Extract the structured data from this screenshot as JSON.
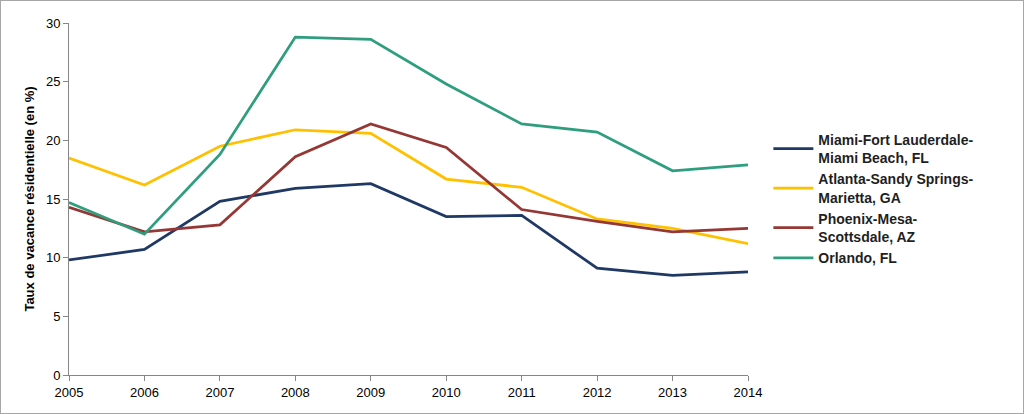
{
  "chart_data": {
    "type": "line",
    "y_label": "Taux de vacance résidentielle (en %)",
    "x": [
      2005,
      2006,
      2007,
      2008,
      2009,
      2010,
      2011,
      2012,
      2013,
      2014
    ],
    "xlim": [
      2005,
      2014
    ],
    "xticks": [
      2005,
      2006,
      2007,
      2008,
      2009,
      2010,
      2011,
      2012,
      2013,
      2014
    ],
    "ylim": [
      0,
      30
    ],
    "yticks": [
      0,
      5,
      10,
      15,
      20,
      25,
      30
    ],
    "grid": false,
    "legend": "right",
    "series": [
      {
        "name": "Miami-Fort Lauderdale-Miami Beach, FL",
        "color": "#1f3864",
        "values": [
          9.8,
          10.7,
          14.8,
          15.9,
          16.3,
          13.5,
          13.6,
          9.1,
          8.5,
          8.8
        ]
      },
      {
        "name": "Atlanta-Sandy Springs-Marietta, GA",
        "color": "#ffc000",
        "values": [
          18.5,
          16.2,
          19.5,
          20.9,
          20.6,
          16.7,
          16.0,
          13.3,
          12.5,
          11.2
        ]
      },
      {
        "name": "Phoenix-Mesa-Scottsdale, AZ",
        "color": "#953735",
        "values": [
          14.3,
          12.2,
          12.8,
          18.6,
          21.4,
          19.4,
          14.1,
          13.1,
          12.2,
          12.5
        ]
      },
      {
        "name": "Orlando, FL",
        "color": "#2e9e7e",
        "values": [
          14.7,
          12.0,
          18.8,
          28.8,
          28.6,
          24.8,
          21.4,
          20.7,
          17.4,
          17.9
        ]
      }
    ]
  }
}
